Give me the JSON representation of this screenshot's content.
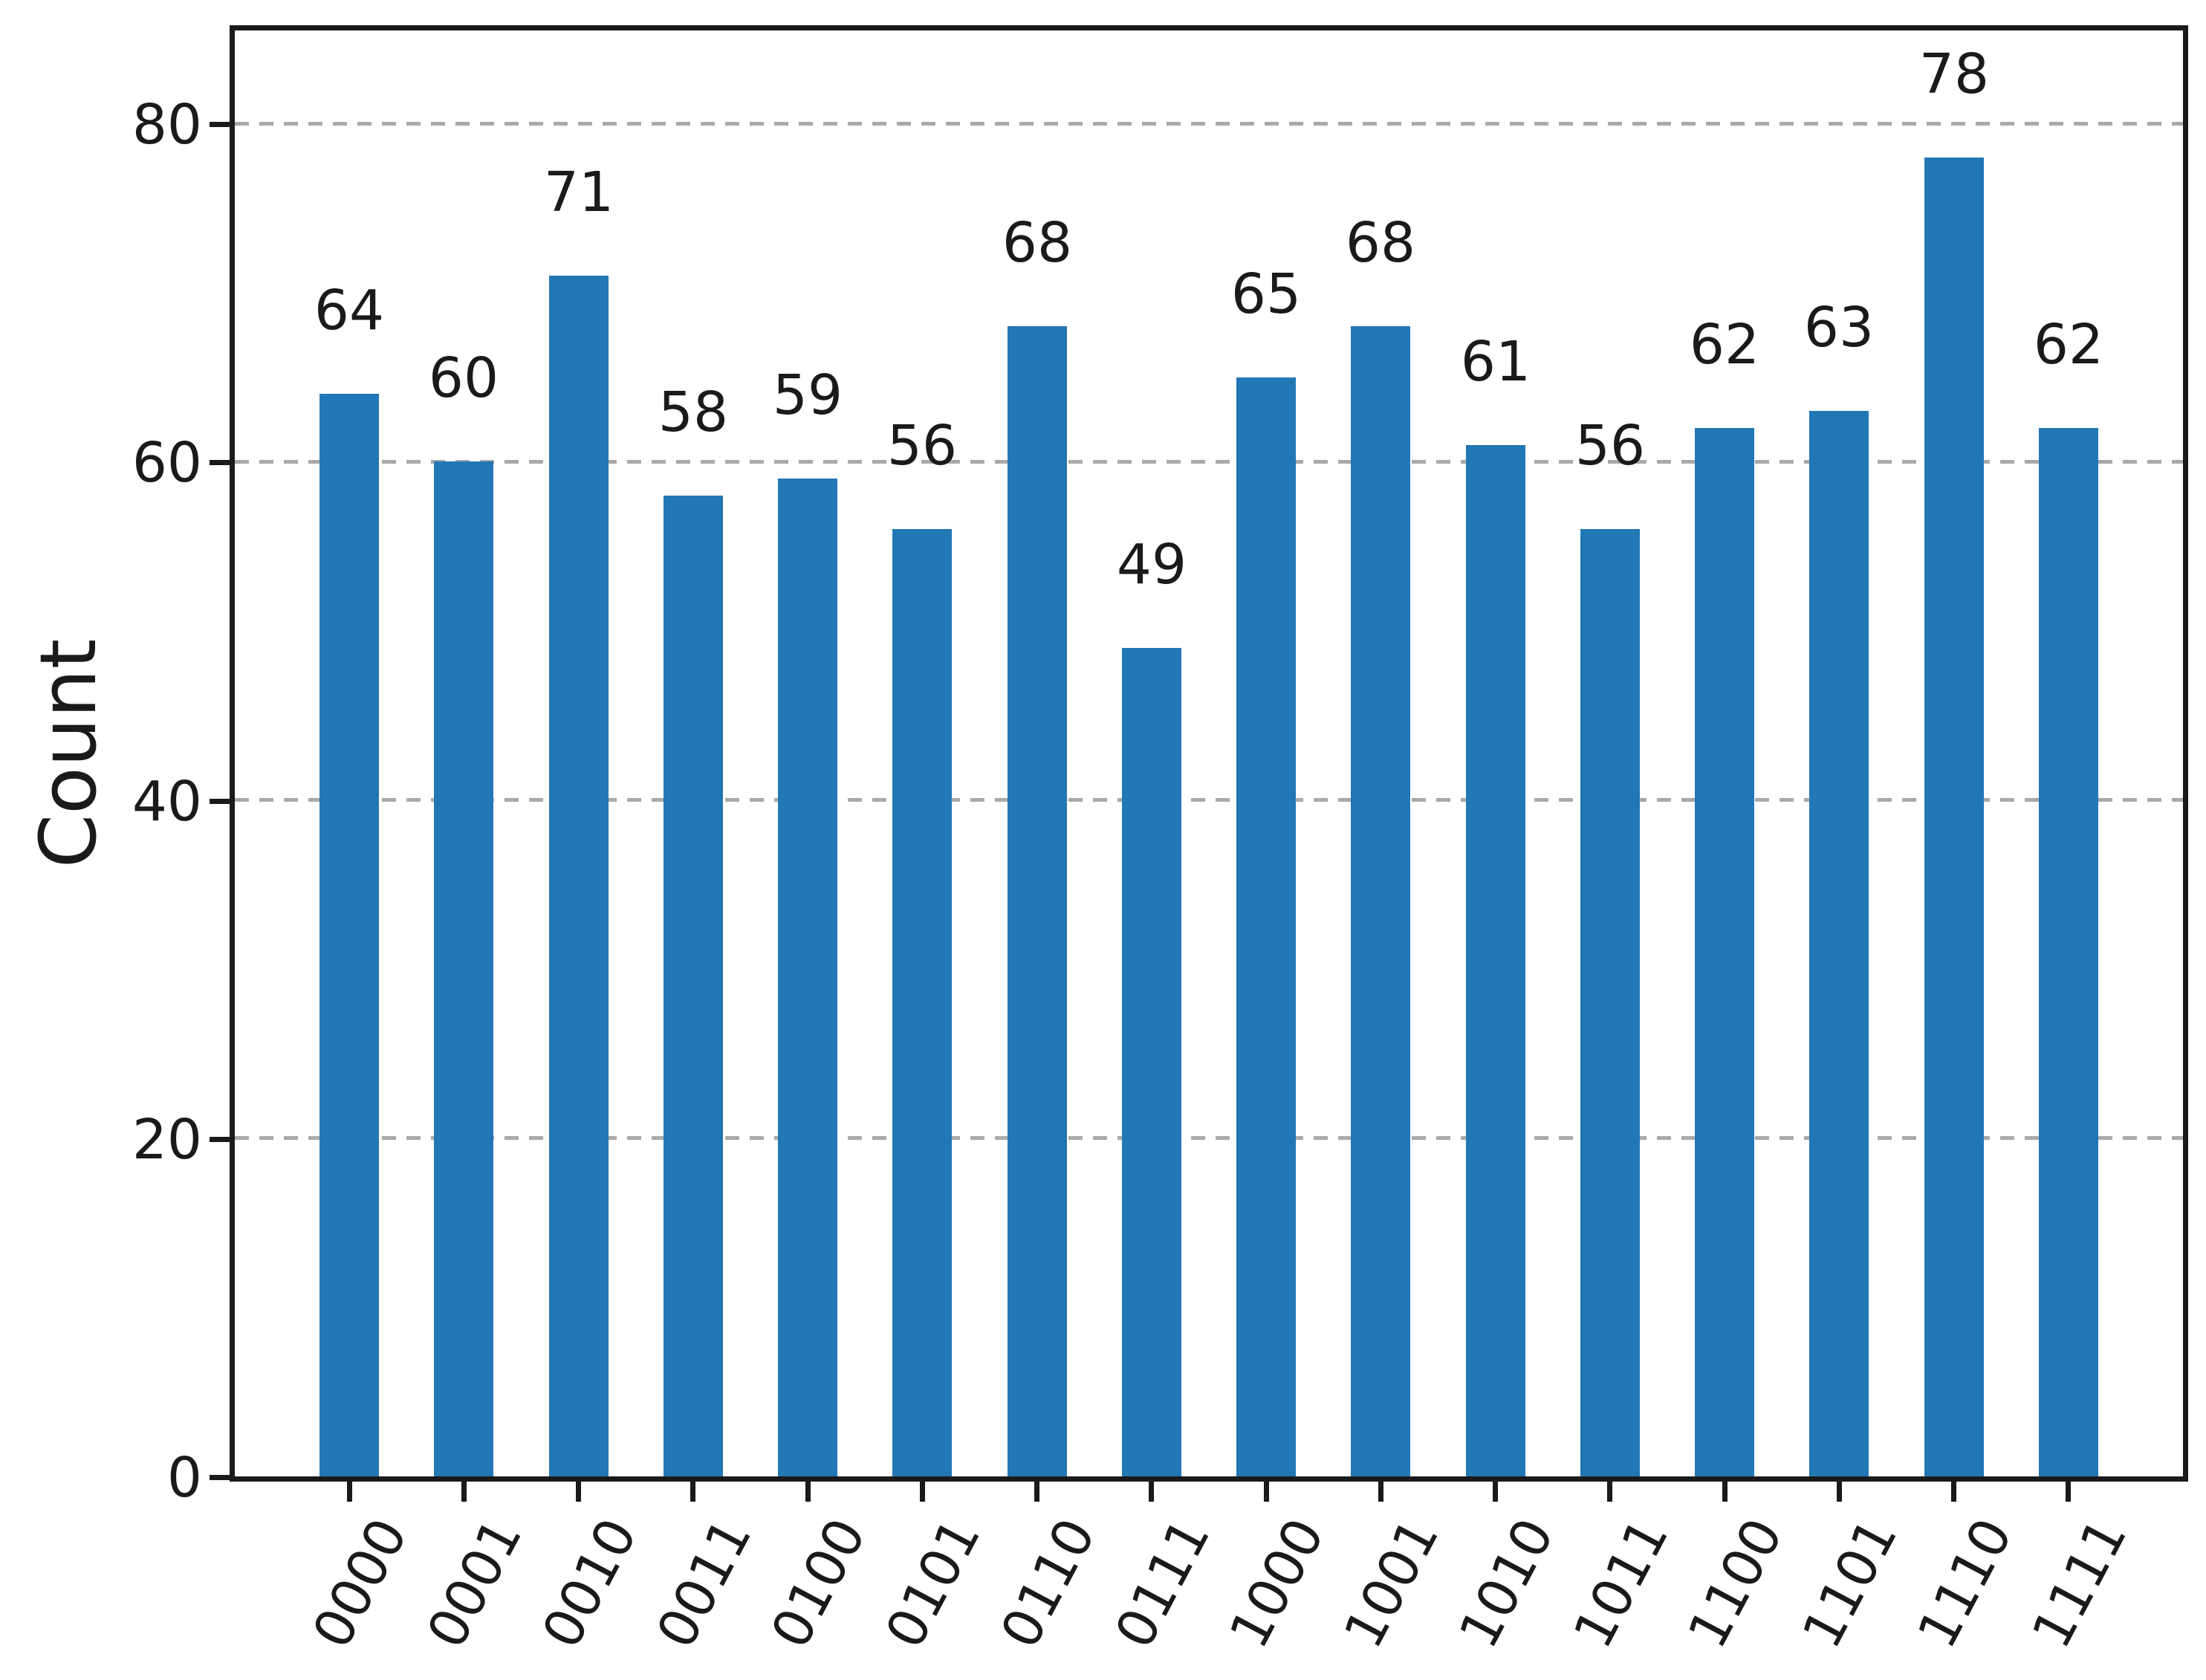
{
  "chart_data": {
    "type": "bar",
    "title": "",
    "xlabel": "",
    "ylabel": "Count",
    "categories": [
      "0000",
      "0001",
      "0010",
      "0011",
      "0100",
      "0101",
      "0110",
      "0111",
      "1000",
      "1001",
      "1010",
      "1011",
      "1100",
      "1101",
      "1110",
      "1111"
    ],
    "values": [
      64,
      60,
      71,
      58,
      59,
      56,
      68,
      49,
      65,
      68,
      61,
      56,
      62,
      63,
      78,
      62
    ],
    "bar_labels": [
      "64",
      "60",
      "71",
      "58",
      "59",
      "56",
      "68",
      "49",
      "65",
      "68",
      "61",
      "56",
      "62",
      "63",
      "78",
      "62"
    ],
    "ytick_labels": [
      "0",
      "20",
      "40",
      "60",
      "80"
    ],
    "ytick_values": [
      0,
      20,
      40,
      60,
      80
    ],
    "ylim": [
      0,
      85.5
    ],
    "gridlines_at": [
      20,
      40,
      60,
      80
    ],
    "grid_style": "dashed",
    "x_tick_rotation_deg": 62,
    "legend": "none",
    "colors": {
      "bar": "#2277b5",
      "grid": "#a9a9a9",
      "axis": "#1a1a1a",
      "text": "#1a1a1a"
    }
  }
}
